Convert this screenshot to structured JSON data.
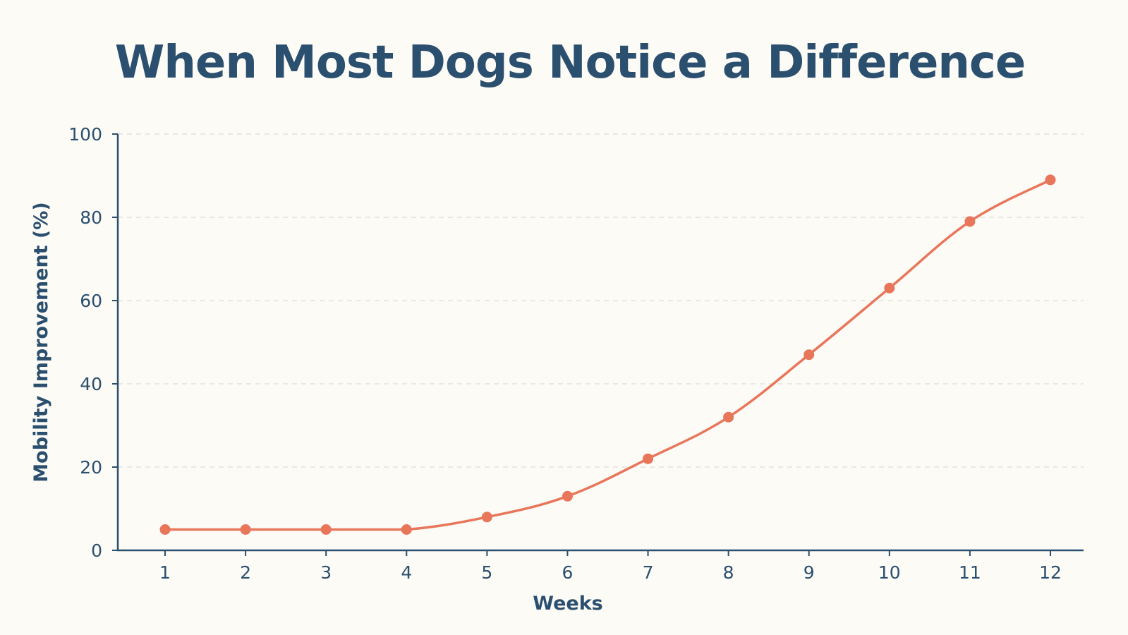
{
  "chart_data": {
    "type": "line",
    "title": "When Most Dogs Notice a Difference",
    "xlabel": "Weeks",
    "ylabel": "Mobility Improvement (%)",
    "x": [
      1,
      2,
      3,
      4,
      5,
      6,
      7,
      8,
      9,
      10,
      11,
      12
    ],
    "series": [
      {
        "values": [
          5,
          5,
          5,
          5,
          8,
          13,
          22,
          32,
          47,
          63,
          79,
          89
        ]
      }
    ],
    "ylim": [
      0,
      100
    ],
    "yticks": [
      0,
      20,
      40,
      60,
      80,
      100
    ],
    "grid": true,
    "colors": {
      "line": "#e8765a",
      "text": "#2b4f6e",
      "grid": "#dcdcdc",
      "background": "#fdfbf6"
    }
  }
}
